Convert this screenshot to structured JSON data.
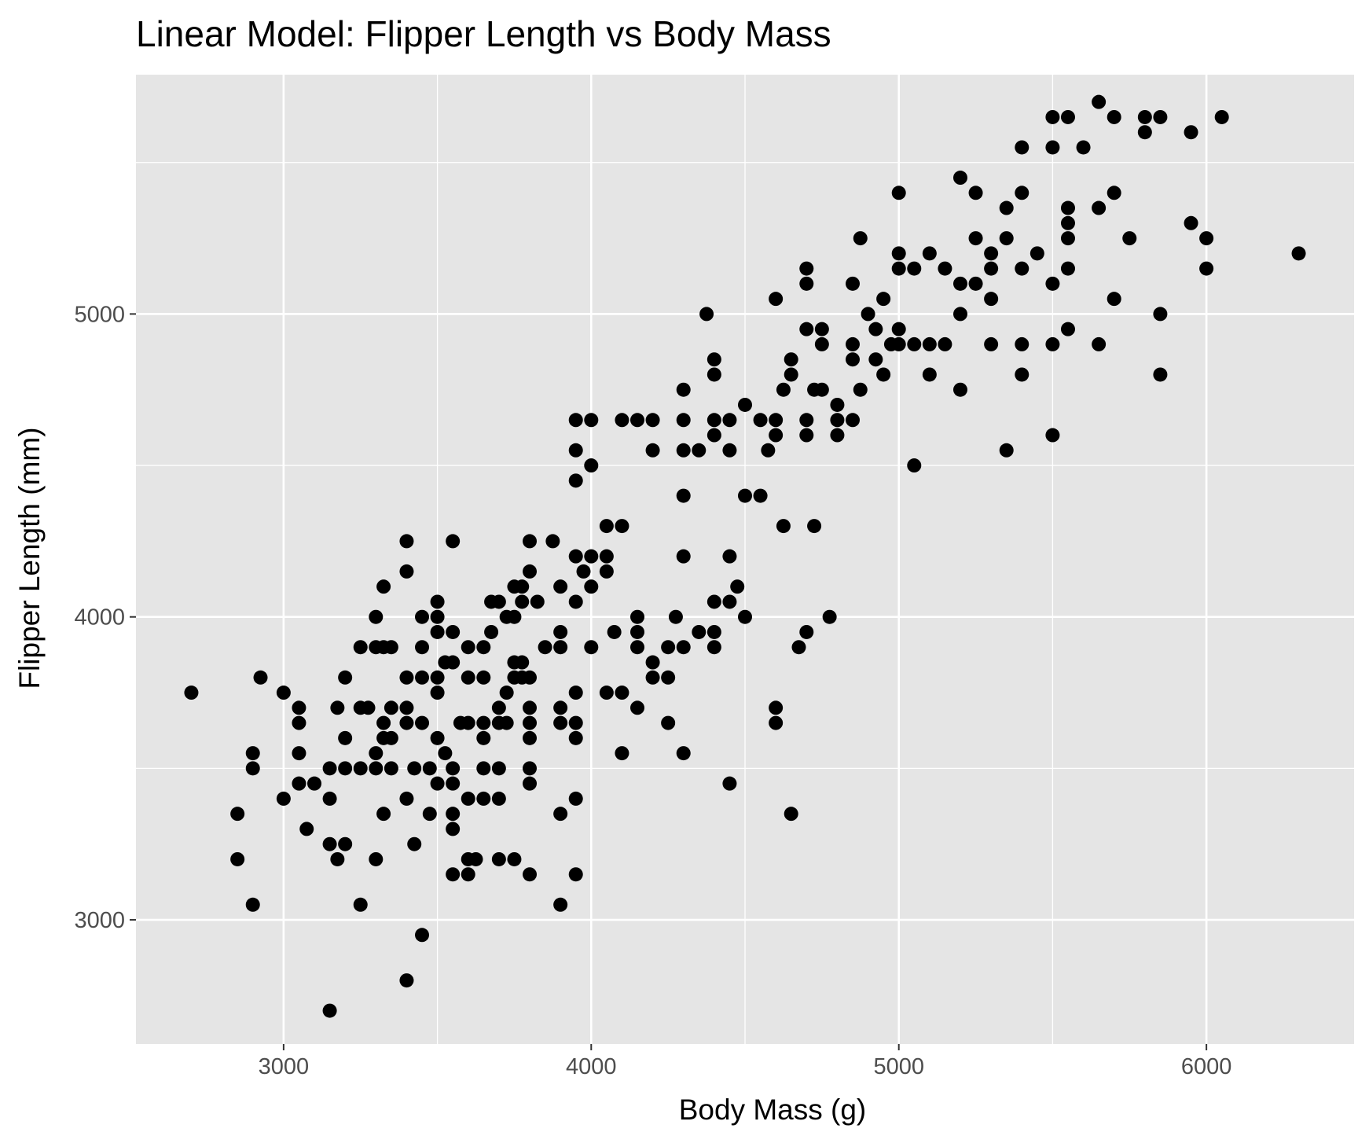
{
  "chart_data": {
    "type": "scatter",
    "title": "Linear Model: Flipper Length vs Body Mass",
    "xlabel": "Body Mass (g)",
    "ylabel": "Flipper Length (mm)",
    "xlim": [
      2520,
      6480
    ],
    "ylim": [
      2590,
      5790
    ],
    "x_ticks": [
      3000,
      4000,
      5000,
      6000
    ],
    "y_ticks": [
      3000,
      4000,
      5000
    ],
    "x_tick_labels": [
      "3000",
      "4000",
      "5000",
      "6000"
    ],
    "y_tick_labels": [
      "3000",
      "4000",
      "5000"
    ],
    "grid": true,
    "legend": "none",
    "colors": {
      "panel": "#e5e5e5",
      "grid": "#ffffff",
      "point": "#000000",
      "tick": "#4d4d4d"
    },
    "points": [
      [
        2700,
        3750
      ],
      [
        2850,
        3200
      ],
      [
        2850,
        3350
      ],
      [
        2900,
        3050
      ],
      [
        2900,
        3500
      ],
      [
        2900,
        3550
      ],
      [
        2925,
        3800
      ],
      [
        3000,
        3400
      ],
      [
        3000,
        3750
      ],
      [
        3050,
        3450
      ],
      [
        3050,
        3550
      ],
      [
        3050,
        3650
      ],
      [
        3050,
        3700
      ],
      [
        3075,
        3300
      ],
      [
        3100,
        3450
      ],
      [
        3150,
        2700
      ],
      [
        3150,
        3250
      ],
      [
        3150,
        3400
      ],
      [
        3150,
        3500
      ],
      [
        3175,
        3200
      ],
      [
        3175,
        3700
      ],
      [
        3200,
        3250
      ],
      [
        3200,
        3500
      ],
      [
        3200,
        3600
      ],
      [
        3200,
        3800
      ],
      [
        3250,
        3050
      ],
      [
        3250,
        3500
      ],
      [
        3250,
        3700
      ],
      [
        3250,
        3900
      ],
      [
        3275,
        3700
      ],
      [
        3300,
        3200
      ],
      [
        3300,
        3500
      ],
      [
        3300,
        3550
      ],
      [
        3300,
        3900
      ],
      [
        3300,
        4000
      ],
      [
        3325,
        3350
      ],
      [
        3325,
        3600
      ],
      [
        3325,
        3650
      ],
      [
        3325,
        3900
      ],
      [
        3325,
        4100
      ],
      [
        3350,
        3500
      ],
      [
        3350,
        3600
      ],
      [
        3350,
        3700
      ],
      [
        3350,
        3900
      ],
      [
        3400,
        2800
      ],
      [
        3400,
        3400
      ],
      [
        3400,
        3650
      ],
      [
        3400,
        3700
      ],
      [
        3400,
        3800
      ],
      [
        3400,
        4150
      ],
      [
        3400,
        4250
      ],
      [
        3425,
        3250
      ],
      [
        3425,
        3500
      ],
      [
        3450,
        2950
      ],
      [
        3450,
        3650
      ],
      [
        3450,
        3800
      ],
      [
        3450,
        3900
      ],
      [
        3450,
        4000
      ],
      [
        3475,
        3350
      ],
      [
        3475,
        3500
      ],
      [
        3500,
        3450
      ],
      [
        3500,
        3600
      ],
      [
        3500,
        3750
      ],
      [
        3500,
        3800
      ],
      [
        3500,
        3950
      ],
      [
        3500,
        4000
      ],
      [
        3500,
        4050
      ],
      [
        3525,
        3550
      ],
      [
        3525,
        3850
      ],
      [
        3550,
        3150
      ],
      [
        3550,
        3300
      ],
      [
        3550,
        3350
      ],
      [
        3550,
        3450
      ],
      [
        3550,
        3500
      ],
      [
        3550,
        3850
      ],
      [
        3550,
        3950
      ],
      [
        3550,
        4250
      ],
      [
        3575,
        3650
      ],
      [
        3600,
        3150
      ],
      [
        3600,
        3200
      ],
      [
        3600,
        3400
      ],
      [
        3600,
        3650
      ],
      [
        3600,
        3800
      ],
      [
        3600,
        3900
      ],
      [
        3625,
        3200
      ],
      [
        3650,
        3400
      ],
      [
        3650,
        3500
      ],
      [
        3650,
        3600
      ],
      [
        3650,
        3650
      ],
      [
        3650,
        3800
      ],
      [
        3650,
        3900
      ],
      [
        3675,
        3950
      ],
      [
        3675,
        4050
      ],
      [
        3700,
        3200
      ],
      [
        3700,
        3400
      ],
      [
        3700,
        3500
      ],
      [
        3700,
        3650
      ],
      [
        3700,
        3700
      ],
      [
        3700,
        4050
      ],
      [
        3725,
        3650
      ],
      [
        3725,
        3750
      ],
      [
        3725,
        4000
      ],
      [
        3750,
        3200
      ],
      [
        3750,
        3800
      ],
      [
        3750,
        3850
      ],
      [
        3750,
        4000
      ],
      [
        3750,
        4100
      ],
      [
        3775,
        3800
      ],
      [
        3775,
        3850
      ],
      [
        3775,
        4050
      ],
      [
        3775,
        4100
      ],
      [
        3800,
        3150
      ],
      [
        3800,
        3450
      ],
      [
        3800,
        3500
      ],
      [
        3800,
        3600
      ],
      [
        3800,
        3650
      ],
      [
        3800,
        3700
      ],
      [
        3800,
        3800
      ],
      [
        3800,
        4150
      ],
      [
        3800,
        4250
      ],
      [
        3825,
        4050
      ],
      [
        3850,
        3900
      ],
      [
        3875,
        4250
      ],
      [
        3900,
        3050
      ],
      [
        3900,
        3350
      ],
      [
        3900,
        3650
      ],
      [
        3900,
        3700
      ],
      [
        3900,
        3900
      ],
      [
        3900,
        3950
      ],
      [
        3900,
        4100
      ],
      [
        3950,
        3150
      ],
      [
        3950,
        3400
      ],
      [
        3950,
        3600
      ],
      [
        3950,
        3650
      ],
      [
        3950,
        3750
      ],
      [
        3950,
        4050
      ],
      [
        3950,
        4200
      ],
      [
        3950,
        4450
      ],
      [
        3950,
        4550
      ],
      [
        3950,
        4650
      ],
      [
        3975,
        4150
      ],
      [
        4000,
        3900
      ],
      [
        4000,
        4100
      ],
      [
        4000,
        4200
      ],
      [
        4000,
        4500
      ],
      [
        4000,
        4650
      ],
      [
        4050,
        3750
      ],
      [
        4050,
        4150
      ],
      [
        4050,
        4200
      ],
      [
        4050,
        4300
      ],
      [
        4075,
        3950
      ],
      [
        4100,
        3550
      ],
      [
        4100,
        3750
      ],
      [
        4100,
        4300
      ],
      [
        4100,
        4650
      ],
      [
        4150,
        3700
      ],
      [
        4150,
        3900
      ],
      [
        4150,
        3950
      ],
      [
        4150,
        4000
      ],
      [
        4150,
        4650
      ],
      [
        4200,
        3800
      ],
      [
        4200,
        3850
      ],
      [
        4200,
        4550
      ],
      [
        4200,
        4650
      ],
      [
        4250,
        3650
      ],
      [
        4250,
        3800
      ],
      [
        4250,
        3900
      ],
      [
        4275,
        4000
      ],
      [
        4300,
        3550
      ],
      [
        4300,
        3900
      ],
      [
        4300,
        4200
      ],
      [
        4300,
        4400
      ],
      [
        4300,
        4550
      ],
      [
        4300,
        4650
      ],
      [
        4300,
        4750
      ],
      [
        4350,
        3950
      ],
      [
        4350,
        4550
      ],
      [
        4375,
        5000
      ],
      [
        4400,
        3900
      ],
      [
        4400,
        3950
      ],
      [
        4400,
        4050
      ],
      [
        4400,
        4600
      ],
      [
        4400,
        4650
      ],
      [
        4400,
        4800
      ],
      [
        4400,
        4850
      ],
      [
        4450,
        3450
      ],
      [
        4450,
        4050
      ],
      [
        4450,
        4200
      ],
      [
        4450,
        4550
      ],
      [
        4450,
        4650
      ],
      [
        4475,
        4100
      ],
      [
        4500,
        4000
      ],
      [
        4500,
        4400
      ],
      [
        4500,
        4700
      ],
      [
        4550,
        4400
      ],
      [
        4550,
        4650
      ],
      [
        4575,
        4550
      ],
      [
        4600,
        3650
      ],
      [
        4600,
        3700
      ],
      [
        4600,
        4600
      ],
      [
        4600,
        4650
      ],
      [
        4600,
        5050
      ],
      [
        4625,
        4300
      ],
      [
        4625,
        4750
      ],
      [
        4650,
        3350
      ],
      [
        4650,
        4800
      ],
      [
        4650,
        4850
      ],
      [
        4675,
        3900
      ],
      [
        4700,
        3950
      ],
      [
        4700,
        4600
      ],
      [
        4700,
        4650
      ],
      [
        4700,
        4950
      ],
      [
        4700,
        5100
      ],
      [
        4700,
        5150
      ],
      [
        4725,
        4300
      ],
      [
        4725,
        4750
      ],
      [
        4750,
        4750
      ],
      [
        4750,
        4900
      ],
      [
        4750,
        4950
      ],
      [
        4775,
        4000
      ],
      [
        4800,
        4600
      ],
      [
        4800,
        4650
      ],
      [
        4800,
        4700
      ],
      [
        4850,
        4650
      ],
      [
        4850,
        4850
      ],
      [
        4850,
        4900
      ],
      [
        4850,
        5100
      ],
      [
        4875,
        4750
      ],
      [
        4875,
        5250
      ],
      [
        4900,
        5000
      ],
      [
        4925,
        4850
      ],
      [
        4925,
        4950
      ],
      [
        4950,
        4800
      ],
      [
        4950,
        5050
      ],
      [
        4975,
        4900
      ],
      [
        5000,
        4900
      ],
      [
        5000,
        4950
      ],
      [
        5000,
        5150
      ],
      [
        5000,
        5200
      ],
      [
        5000,
        5400
      ],
      [
        5050,
        4500
      ],
      [
        5050,
        4900
      ],
      [
        5050,
        5150
      ],
      [
        5100,
        4800
      ],
      [
        5100,
        4900
      ],
      [
        5100,
        5200
      ],
      [
        5150,
        4900
      ],
      [
        5150,
        5150
      ],
      [
        5200,
        4750
      ],
      [
        5200,
        5000
      ],
      [
        5200,
        5100
      ],
      [
        5200,
        5450
      ],
      [
        5250,
        5100
      ],
      [
        5250,
        5250
      ],
      [
        5250,
        5400
      ],
      [
        5300,
        4900
      ],
      [
        5300,
        5050
      ],
      [
        5300,
        5150
      ],
      [
        5300,
        5200
      ],
      [
        5350,
        4550
      ],
      [
        5350,
        5250
      ],
      [
        5350,
        5350
      ],
      [
        5400,
        4800
      ],
      [
        5400,
        4900
      ],
      [
        5400,
        5150
      ],
      [
        5400,
        5400
      ],
      [
        5400,
        5550
      ],
      [
        5450,
        5200
      ],
      [
        5500,
        4600
      ],
      [
        5500,
        4900
      ],
      [
        5500,
        5100
      ],
      [
        5500,
        5550
      ],
      [
        5500,
        5650
      ],
      [
        5550,
        4950
      ],
      [
        5550,
        5150
      ],
      [
        5550,
        5250
      ],
      [
        5550,
        5300
      ],
      [
        5550,
        5350
      ],
      [
        5550,
        5650
      ],
      [
        5600,
        5550
      ],
      [
        5650,
        4900
      ],
      [
        5650,
        5350
      ],
      [
        5650,
        5700
      ],
      [
        5700,
        5050
      ],
      [
        5700,
        5400
      ],
      [
        5700,
        5650
      ],
      [
        5750,
        5250
      ],
      [
        5800,
        5600
      ],
      [
        5800,
        5650
      ],
      [
        5850,
        4800
      ],
      [
        5850,
        5000
      ],
      [
        5850,
        5650
      ],
      [
        5950,
        5300
      ],
      [
        5950,
        5600
      ],
      [
        6000,
        5150
      ],
      [
        6000,
        5250
      ],
      [
        6050,
        5650
      ],
      [
        6300,
        5200
      ]
    ]
  }
}
